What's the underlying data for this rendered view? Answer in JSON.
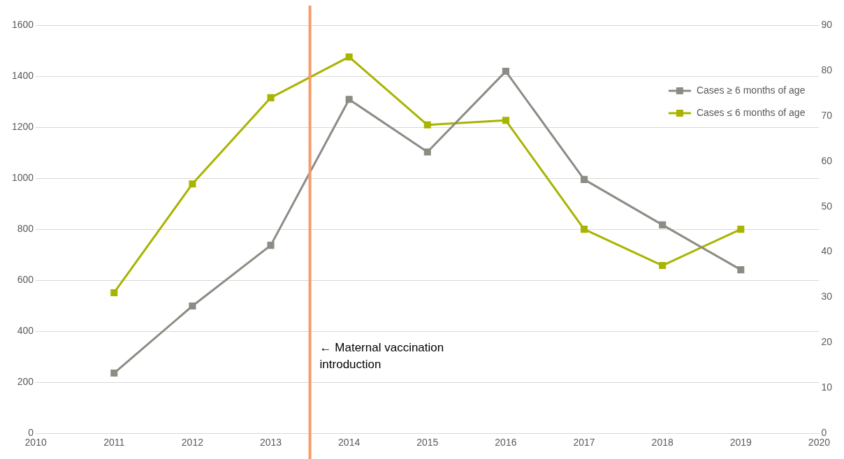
{
  "chart_data": {
    "type": "line",
    "x": [
      2011,
      2012,
      2013,
      2014,
      2015,
      2016,
      2017,
      2018,
      2019
    ],
    "series": [
      {
        "name": "Cases ≥ 6 months of age",
        "color": "#8c8c84",
        "values": [
          236,
          499,
          737,
          1309,
          1103,
          1419,
          995,
          817,
          641
        ]
      },
      {
        "name": "Cases ≤ 6 months of age",
        "color": "#a8b400",
        "axis": "y2",
        "values": [
          31,
          55,
          74,
          83,
          68,
          69,
          45,
          37,
          45
        ]
      }
    ],
    "xlim": [
      2010,
      2020
    ],
    "xticks": [
      2010,
      2011,
      2012,
      2013,
      2014,
      2015,
      2016,
      2017,
      2018,
      2019,
      2020
    ],
    "ylim": [
      0,
      1600
    ],
    "yticks": [
      0,
      200,
      400,
      600,
      800,
      1000,
      1200,
      1400,
      1600
    ],
    "y2lim": [
      0,
      90
    ],
    "y2ticks": [
      0,
      10,
      20,
      30,
      40,
      50,
      60,
      70,
      80,
      90
    ],
    "ref_lines": [
      {
        "axis": "x",
        "value": 2013.5,
        "label": "← Maternal vaccination introduction",
        "color": "#f79b6a"
      }
    ],
    "grid": "y",
    "legend": "top right",
    "marker": "square",
    "line_style": "solid"
  }
}
